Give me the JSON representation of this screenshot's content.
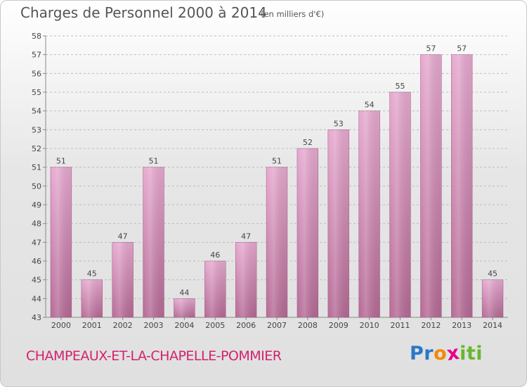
{
  "chart_title": "Charges de Personnel 2000 à 2014",
  "chart_subtitle": "(en milliers d'€)",
  "town_name": "CHAMPEAUX-ET-LA-CHAPELLE-POMMIER",
  "brand": {
    "letters": [
      "P",
      "r",
      "o",
      "x",
      "i",
      "t",
      "i"
    ],
    "colors": [
      "#2a78c8",
      "#2a78c8",
      "#f28a00",
      "#e8008a",
      "#66b82e",
      "#66b82e",
      "#66b82e"
    ]
  },
  "colors": {
    "bar_light": "#e6a9cf",
    "bar_dark": "#b56a95",
    "grid": "#bdbdbd",
    "text": "#444444",
    "town": "#d2226e"
  },
  "chart_data": {
    "type": "bar",
    "categories": [
      "2000",
      "2001",
      "2002",
      "2003",
      "2004",
      "2005",
      "2006",
      "2007",
      "2008",
      "2009",
      "2010",
      "2011",
      "2012",
      "2013",
      "2014"
    ],
    "values": [
      51,
      45,
      47,
      51,
      44,
      46,
      47,
      51,
      52,
      53,
      54,
      55,
      57,
      57,
      45
    ],
    "title": "Charges de Personnel 2000 à 2014",
    "subtitle": "(en milliers d'€)",
    "xlabel": "",
    "ylabel": "",
    "ylim": [
      43,
      58
    ],
    "yticks": [
      43,
      44,
      45,
      46,
      47,
      48,
      49,
      50,
      51,
      52,
      53,
      54,
      55,
      56,
      57,
      58
    ],
    "grid": true,
    "data_labels": true
  }
}
